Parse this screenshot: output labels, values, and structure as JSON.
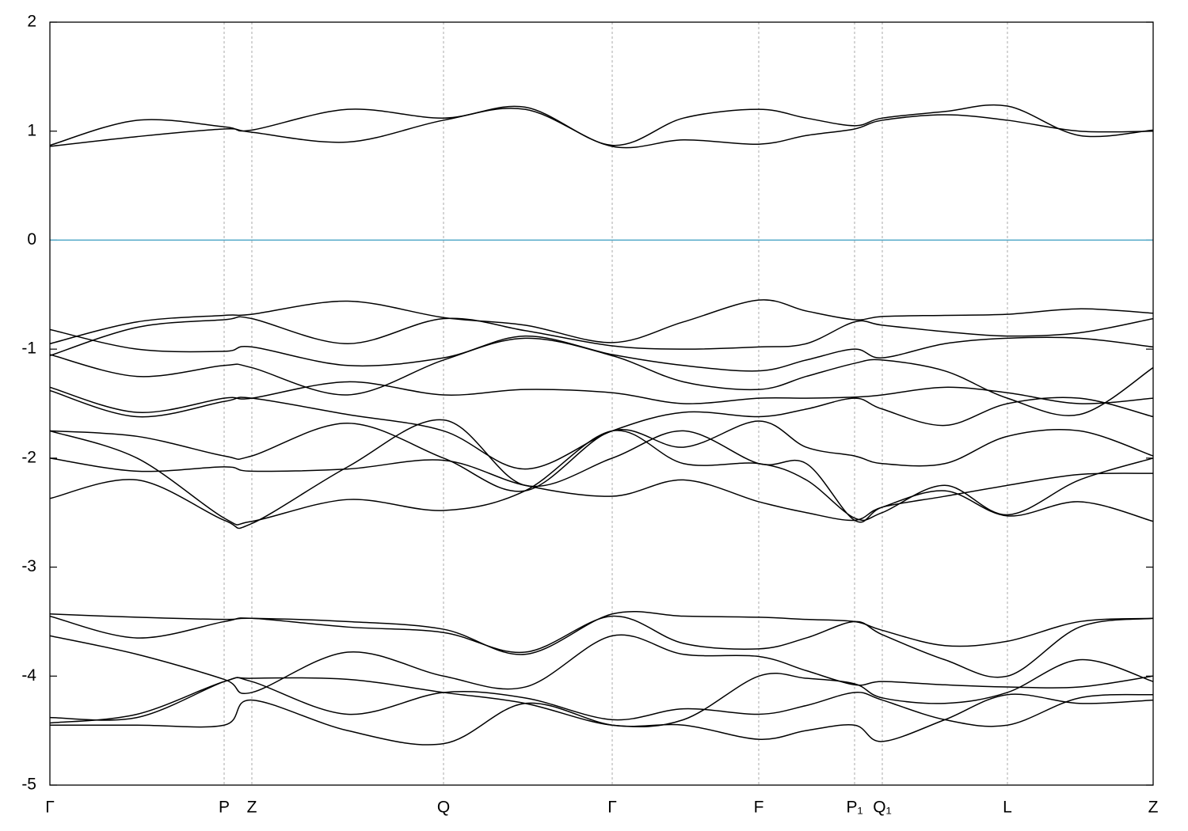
{
  "chart_data": {
    "type": "line",
    "xlim": [
      0,
      1393
    ],
    "ylim": [
      -5,
      2
    ],
    "yticks": [
      -5,
      -4,
      -3,
      -2,
      -1,
      0,
      1,
      2
    ],
    "xticks": [
      {
        "value": 0,
        "label": "Γ"
      },
      {
        "value": 220,
        "label": "P"
      },
      {
        "value": 255,
        "label": "Z"
      },
      {
        "value": 497,
        "label": "Q"
      },
      {
        "value": 710,
        "label": "Γ"
      },
      {
        "value": 895,
        "label": "F"
      },
      {
        "value": 1016,
        "label": "P₁"
      },
      {
        "value": 1051,
        "label": "Q₁"
      },
      {
        "value": 1209,
        "label": "L"
      },
      {
        "value": 1393,
        "label": "Z"
      }
    ],
    "grid": true,
    "fermi_level": 0,
    "fermi_color": "#4fa8c8",
    "x": [
      0,
      110,
      220,
      255,
      376,
      497,
      600,
      710,
      800,
      895,
      955,
      1016,
      1051,
      1130,
      1209,
      1300,
      1393
    ],
    "series": [
      {
        "color": "#000000",
        "values": [
          0.86,
          0.95,
          1.02,
          0.99,
          0.9,
          1.1,
          1.2,
          0.86,
          0.92,
          0.88,
          0.96,
          1.02,
          1.1,
          1.15,
          1.1,
          1.0,
          1.0
        ]
      },
      {
        "color": "#000000",
        "values": [
          0.87,
          1.1,
          1.04,
          1.01,
          1.2,
          1.12,
          1.22,
          0.87,
          1.12,
          1.2,
          1.12,
          1.05,
          1.12,
          1.18,
          1.23,
          0.96,
          1.01
        ]
      },
      {
        "color": "#000000",
        "values": [
          -0.95,
          -0.75,
          -0.69,
          -0.68,
          -0.56,
          -0.71,
          -0.78,
          -0.94,
          -0.75,
          -0.55,
          -0.65,
          -0.73,
          -0.7,
          -0.69,
          -0.68,
          -0.63,
          -0.67
        ]
      },
      {
        "color": "#000000",
        "values": [
          -1.06,
          -0.8,
          -0.73,
          -0.72,
          -0.95,
          -0.72,
          -0.83,
          -0.97,
          -1.0,
          -0.98,
          -0.95,
          -0.75,
          -0.78,
          -0.84,
          -0.88,
          -0.85,
          -0.72
        ]
      },
      {
        "color": "#000000",
        "values": [
          -0.82,
          -1.0,
          -1.02,
          -0.98,
          -1.15,
          -1.08,
          -0.88,
          -1.05,
          -1.15,
          -1.2,
          -1.1,
          -1.0,
          -1.08,
          -0.95,
          -0.9,
          -0.9,
          -0.98
        ]
      },
      {
        "color": "#000000",
        "values": [
          -1.05,
          -1.25,
          -1.15,
          -1.17,
          -1.42,
          -1.1,
          -0.9,
          -1.06,
          -1.3,
          -1.37,
          -1.25,
          -1.13,
          -1.1,
          -1.2,
          -1.45,
          -1.6,
          -1.17
        ]
      },
      {
        "color": "#000000",
        "values": [
          -1.35,
          -1.58,
          -1.45,
          -1.45,
          -1.3,
          -1.42,
          -1.37,
          -1.4,
          -1.5,
          -1.45,
          -1.45,
          -1.44,
          -1.42,
          -1.35,
          -1.4,
          -1.5,
          -1.45
        ]
      },
      {
        "color": "#000000",
        "values": [
          -1.38,
          -1.62,
          -1.48,
          -1.45,
          -1.6,
          -1.75,
          -2.1,
          -1.75,
          -1.58,
          -1.62,
          -1.55,
          -1.45,
          -1.55,
          -1.7,
          -1.5,
          -1.45,
          -1.62
        ]
      },
      {
        "color": "#000000",
        "values": [
          -1.75,
          -1.8,
          -1.98,
          -1.98,
          -1.68,
          -2.0,
          -2.3,
          -1.75,
          -1.9,
          -1.66,
          -1.9,
          -1.98,
          -2.05,
          -2.05,
          -1.8,
          -1.75,
          -1.98
        ]
      },
      {
        "color": "#000000",
        "values": [
          -1.75,
          -2.0,
          -2.55,
          -2.58,
          -2.38,
          -2.48,
          -2.3,
          -1.75,
          -2.05,
          -2.05,
          -2.2,
          -2.55,
          -2.5,
          -2.25,
          -2.52,
          -2.2,
          -2.0
        ]
      },
      {
        "color": "#000000",
        "values": [
          -2.0,
          -2.12,
          -2.08,
          -2.12,
          -2.1,
          -2.02,
          -2.25,
          -2.35,
          -2.2,
          -2.4,
          -2.5,
          -2.57,
          -2.45,
          -2.35,
          -2.25,
          -2.15,
          -2.14
        ]
      },
      {
        "color": "#000000",
        "values": [
          -2.37,
          -2.2,
          -2.57,
          -2.6,
          -2.08,
          -1.65,
          -2.25,
          -2.0,
          -1.75,
          -2.05,
          -2.05,
          -2.57,
          -2.45,
          -2.3,
          -2.53,
          -2.4,
          -2.58
        ]
      },
      {
        "color": "#000000",
        "values": [
          -3.43,
          -3.46,
          -3.48,
          -3.47,
          -3.5,
          -3.57,
          -3.8,
          -3.43,
          -3.45,
          -3.46,
          -3.48,
          -3.5,
          -3.58,
          -3.72,
          -3.68,
          -3.5,
          -3.47
        ]
      },
      {
        "color": "#000000",
        "values": [
          -3.45,
          -3.65,
          -3.5,
          -3.47,
          -3.55,
          -3.6,
          -3.78,
          -3.45,
          -3.7,
          -3.75,
          -3.65,
          -3.5,
          -3.62,
          -3.85,
          -4.0,
          -3.55,
          -3.47
        ]
      },
      {
        "color": "#000000",
        "values": [
          -3.63,
          -3.8,
          -4.03,
          -4.15,
          -3.78,
          -4.0,
          -4.1,
          -3.63,
          -3.8,
          -3.82,
          -3.95,
          -4.08,
          -4.05,
          -4.08,
          -4.1,
          -4.1,
          -4.0
        ]
      },
      {
        "color": "#000000",
        "values": [
          -4.38,
          -4.38,
          -4.05,
          -4.02,
          -4.03,
          -4.15,
          -4.25,
          -4.45,
          -4.4,
          -4.0,
          -4.02,
          -4.07,
          -4.2,
          -4.25,
          -4.15,
          -3.85,
          -4.05
        ]
      },
      {
        "color": "#000000",
        "values": [
          -4.45,
          -4.45,
          -4.45,
          -4.22,
          -4.5,
          -4.62,
          -4.25,
          -4.45,
          -4.45,
          -4.58,
          -4.5,
          -4.45,
          -4.6,
          -4.4,
          -4.17,
          -4.25,
          -4.22
        ]
      },
      {
        "color": "#000000",
        "values": [
          -4.43,
          -4.35,
          -4.05,
          -4.05,
          -4.35,
          -4.15,
          -4.2,
          -4.4,
          -4.3,
          -4.35,
          -4.27,
          -4.15,
          -4.22,
          -4.4,
          -4.45,
          -4.2,
          -4.17
        ]
      }
    ]
  }
}
